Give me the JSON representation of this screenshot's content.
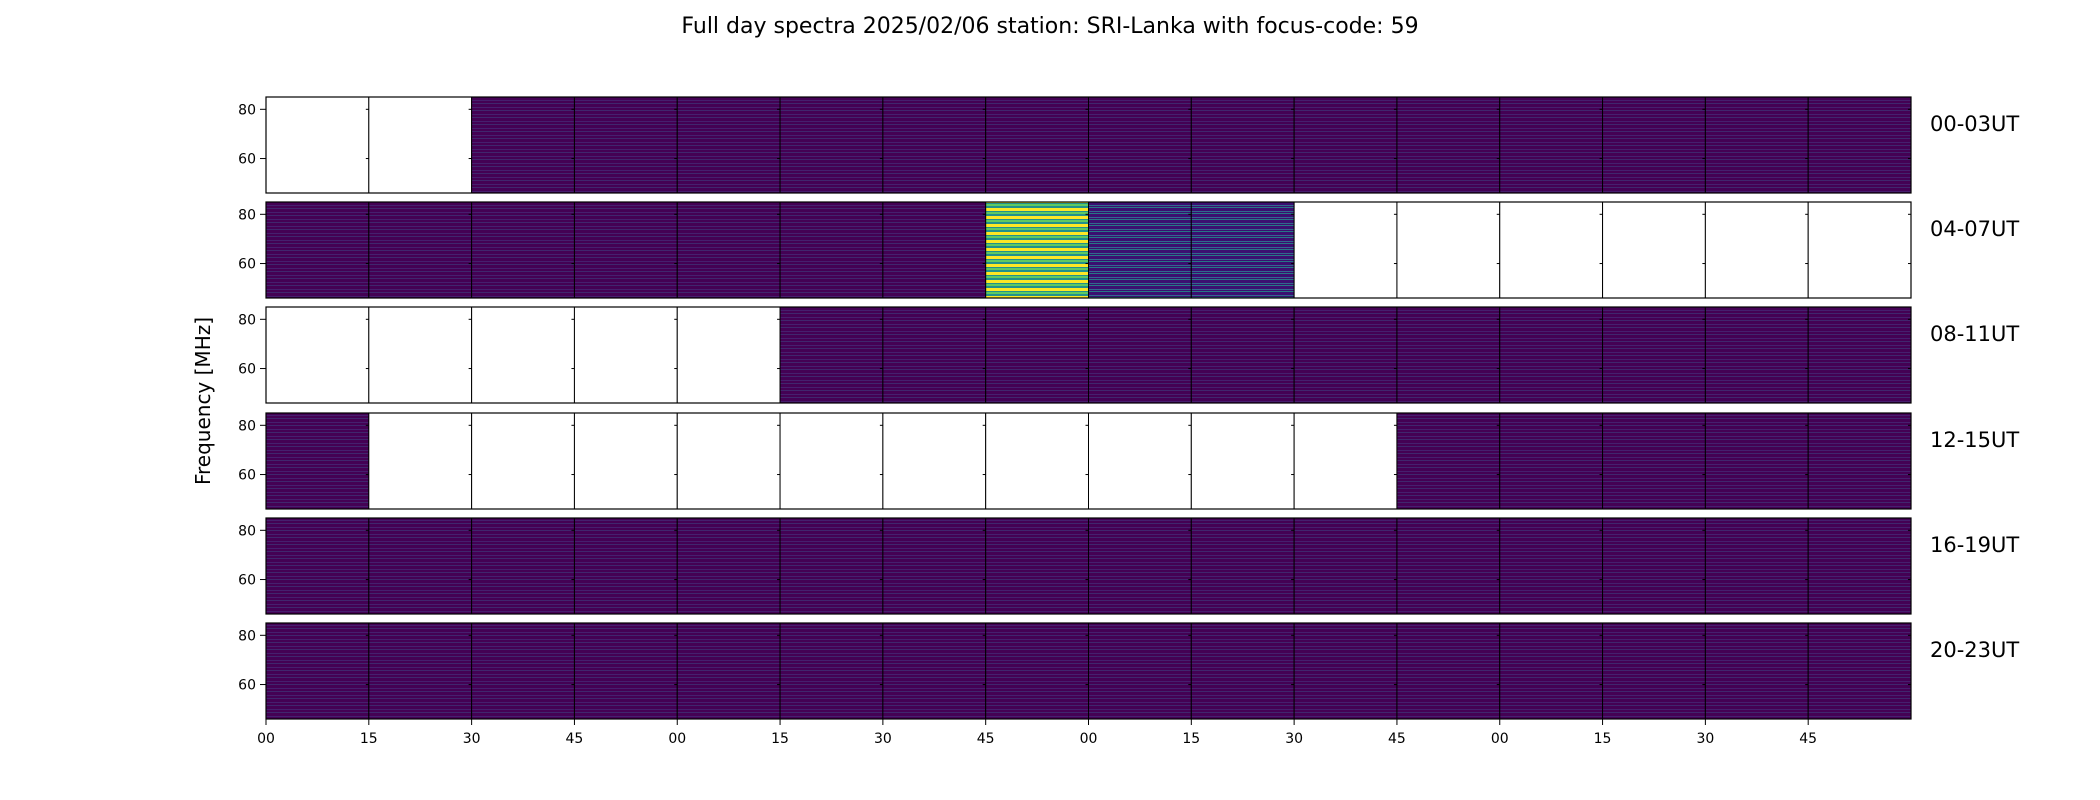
{
  "chart_data": {
    "type": "heatmap",
    "title": "Full day spectra 2025/02/06 station: SRI-Lanka with focus-code: 59",
    "ylabel": "Frequency [MHz]",
    "xlabel": "",
    "ylim": [
      46,
      85
    ],
    "y_ticks": [
      60,
      80
    ],
    "x_tick_labels": [
      "00",
      "15",
      "30",
      "45",
      "00",
      "15",
      "30",
      "45",
      "00",
      "15",
      "30",
      "45",
      "00",
      "15",
      "30",
      "45"
    ],
    "colormap": "viridis",
    "colors": {
      "background": "#440154",
      "dark": "#3b0f70",
      "mid": "#31688e",
      "teal": "#21918c",
      "green": "#5ec962",
      "yellow": "#fde725"
    },
    "rows": [
      {
        "label": "00-03UT",
        "blocks": [
          "empty",
          "empty",
          "low",
          "low",
          "low",
          "low",
          "low",
          "low",
          "low",
          "low",
          "low",
          "low",
          "low",
          "low",
          "low",
          "low"
        ]
      },
      {
        "label": "04-07UT",
        "blocks": [
          "low",
          "low",
          "low",
          "low",
          "low",
          "low",
          "low",
          "high",
          "mid",
          "mid",
          "empty",
          "empty",
          "empty",
          "empty",
          "empty",
          "empty"
        ]
      },
      {
        "label": "08-11UT",
        "blocks": [
          "empty",
          "empty",
          "empty",
          "empty",
          "empty",
          "low",
          "low",
          "low",
          "low",
          "low",
          "low",
          "low",
          "low",
          "low",
          "low",
          "low"
        ]
      },
      {
        "label": "12-15UT",
        "blocks": [
          "low",
          "empty",
          "empty",
          "empty",
          "empty",
          "empty",
          "empty",
          "empty",
          "empty",
          "empty",
          "empty",
          "low",
          "low",
          "low",
          "low",
          "low"
        ]
      },
      {
        "label": "16-19UT",
        "blocks": [
          "low",
          "low",
          "low",
          "low",
          "low",
          "low",
          "low",
          "low",
          "low",
          "low",
          "low",
          "low",
          "low",
          "low",
          "low",
          "low"
        ]
      },
      {
        "label": "20-23UT",
        "blocks": [
          "low",
          "low",
          "low",
          "low",
          "low",
          "low",
          "low",
          "low",
          "low",
          "low",
          "low",
          "low",
          "low",
          "low",
          "low",
          "low"
        ]
      }
    ]
  }
}
